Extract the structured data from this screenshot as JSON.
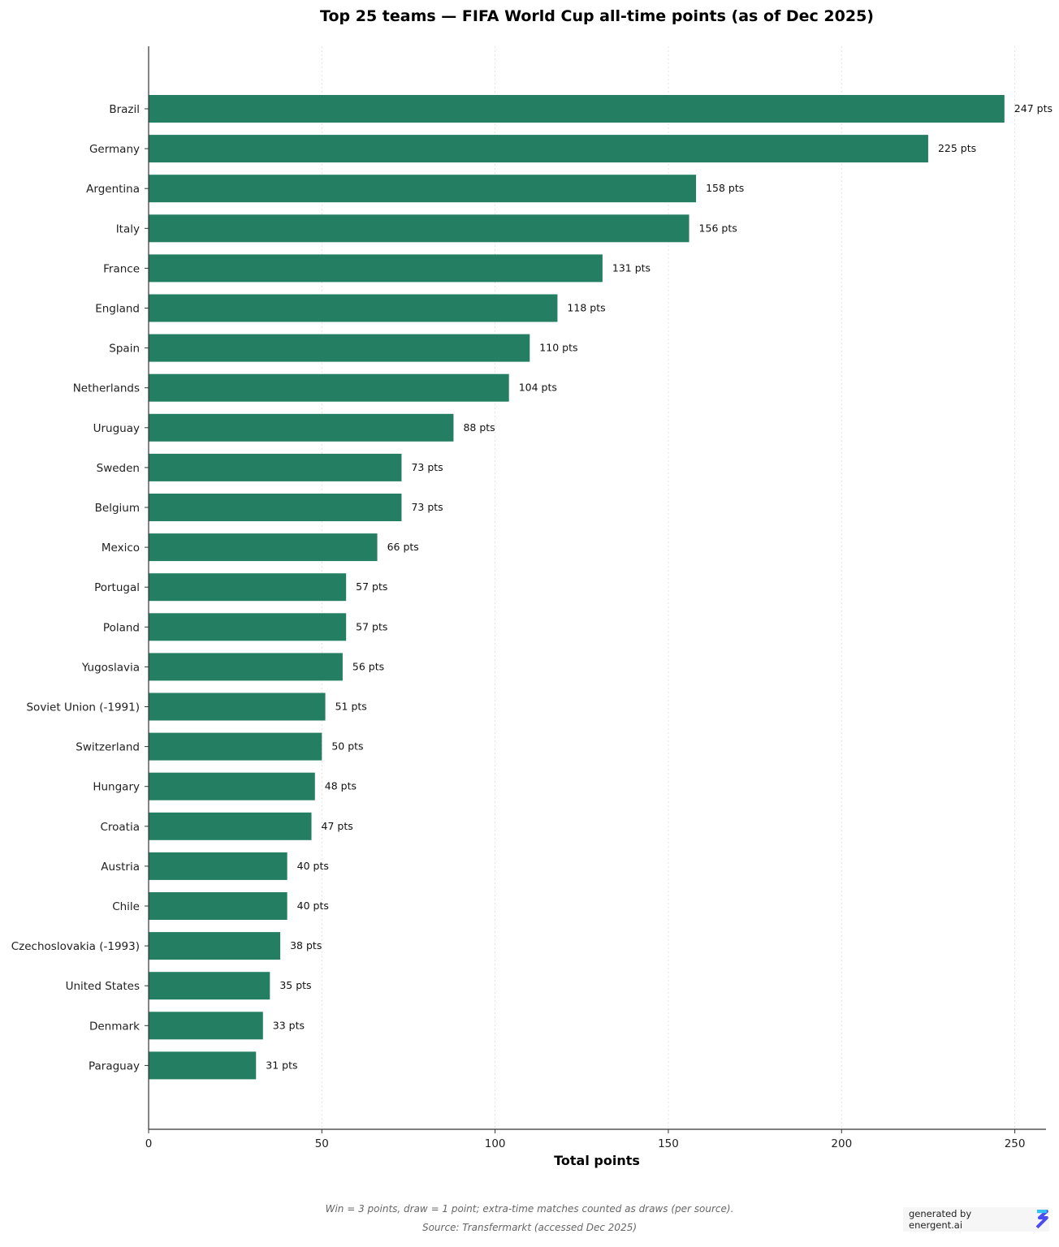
{
  "chart_data": {
    "type": "bar",
    "orientation": "horizontal",
    "title": "Top 25 teams — FIFA World Cup all-time points (as of Dec 2025)",
    "xlabel": "Total points",
    "ylabel": "",
    "xlim": [
      0,
      259
    ],
    "xticks": [
      0,
      50,
      100,
      150,
      200,
      250
    ],
    "grid": "x-dotted",
    "bar_color": "#247f62",
    "value_suffix": " pts",
    "categories": [
      "Brazil",
      "Germany",
      "Argentina",
      "Italy",
      "France",
      "England",
      "Spain",
      "Netherlands",
      "Uruguay",
      "Sweden",
      "Belgium",
      "Mexico",
      "Portugal",
      "Poland",
      "Yugoslavia",
      "Soviet Union (-1991)",
      "Switzerland",
      "Hungary",
      "Croatia",
      "Austria",
      "Chile",
      "Czechoslovakia (-1993)",
      "United States",
      "Denmark",
      "Paraguay"
    ],
    "values": [
      247,
      225,
      158,
      156,
      131,
      118,
      110,
      104,
      88,
      73,
      73,
      66,
      57,
      57,
      56,
      51,
      50,
      48,
      47,
      40,
      40,
      38,
      35,
      33,
      31
    ]
  },
  "footer": {
    "note": "Win = 3 points, draw = 1 point; extra-time matches counted as draws (per source).",
    "source": "Source: Transfermarkt (accessed Dec 2025)"
  },
  "badge": {
    "text": "generated by energent.ai",
    "icon": "energent-logo-icon"
  }
}
